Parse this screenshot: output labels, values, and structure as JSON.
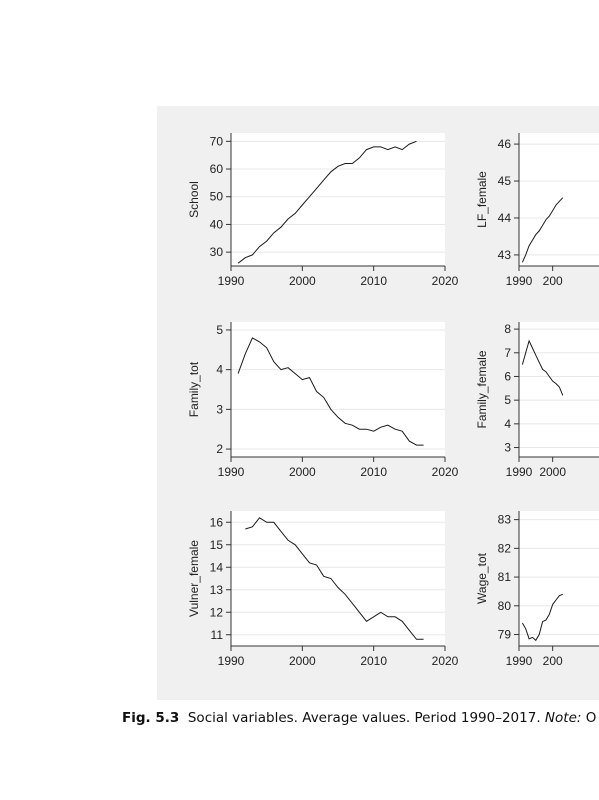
{
  "caption": {
    "figure_number": "Fig. 5.3",
    "text": "Social variables. Average values. Period 1990–2017.",
    "note_label": "Note:",
    "note_text": "O"
  },
  "chart_data": [
    {
      "type": "line",
      "ylabel": "School",
      "xticks": [
        "1990",
        "2000",
        "2010",
        "2020"
      ],
      "yticks": [
        "30",
        "40",
        "50",
        "60",
        "70"
      ],
      "xlim": [
        1990,
        2020
      ],
      "ylim": [
        25,
        73
      ],
      "grid": true,
      "x": [
        1991,
        1992,
        1993,
        1994,
        1995,
        1996,
        1997,
        1998,
        1999,
        2000,
        2001,
        2002,
        2003,
        2004,
        2005,
        2006,
        2007,
        2008,
        2009,
        2010,
        2011,
        2012,
        2013,
        2014,
        2015,
        2016
      ],
      "values": [
        26,
        28,
        29,
        32,
        34,
        37,
        39,
        42,
        44,
        47,
        50,
        53,
        56,
        59,
        61,
        62,
        62,
        64,
        67,
        68,
        68,
        67,
        68,
        67,
        69,
        70
      ]
    },
    {
      "type": "line",
      "ylabel": "LF_female",
      "xticks": [
        "1990",
        "200"
      ],
      "yticks": [
        "43",
        "44",
        "45",
        "46"
      ],
      "xlim": [
        1990,
        2020
      ],
      "ylim": [
        42.7,
        46.3
      ],
      "grid": true,
      "x": [
        1991,
        1992,
        1993,
        1994,
        1995,
        1996,
        1997,
        1998,
        1999,
        2000,
        2001,
        2002,
        2003
      ],
      "values": [
        42.8,
        43.0,
        43.25,
        43.4,
        43.55,
        43.65,
        43.8,
        43.95,
        44.05,
        44.2,
        44.35,
        44.45,
        44.55
      ]
    },
    {
      "type": "line",
      "ylabel": "Family_tot",
      "xticks": [
        "1990",
        "2000",
        "2010",
        "2020"
      ],
      "yticks": [
        "2",
        "3",
        "4",
        "5"
      ],
      "xlim": [
        1990,
        2020
      ],
      "ylim": [
        1.8,
        5.2
      ],
      "grid": true,
      "x": [
        1991,
        1992,
        1993,
        1994,
        1995,
        1996,
        1997,
        1998,
        1999,
        2000,
        2001,
        2002,
        2003,
        2004,
        2005,
        2006,
        2007,
        2008,
        2009,
        2010,
        2011,
        2012,
        2013,
        2014,
        2015,
        2016,
        2017
      ],
      "values": [
        3.9,
        4.4,
        4.8,
        4.7,
        4.55,
        4.2,
        4.0,
        4.05,
        3.9,
        3.75,
        3.8,
        3.45,
        3.3,
        3.0,
        2.8,
        2.65,
        2.6,
        2.5,
        2.5,
        2.45,
        2.55,
        2.6,
        2.5,
        2.45,
        2.2,
        2.1,
        2.1
      ]
    },
    {
      "type": "line",
      "ylabel": "Family_female",
      "xticks": [
        "1990",
        "2000"
      ],
      "yticks": [
        "3",
        "4",
        "5",
        "6",
        "7",
        "8"
      ],
      "xlim": [
        1990,
        2020
      ],
      "ylim": [
        2.6,
        8.3
      ],
      "grid": true,
      "x": [
        1991,
        1992,
        1993,
        1994,
        1995,
        1996,
        1997,
        1998,
        1999,
        2000,
        2001,
        2002,
        2003
      ],
      "values": [
        6.5,
        7.0,
        7.5,
        7.2,
        6.9,
        6.6,
        6.3,
        6.2,
        6.0,
        5.8,
        5.7,
        5.55,
        5.2
      ]
    },
    {
      "type": "line",
      "ylabel": "Vulner_female",
      "xticks": [
        "1990",
        "2000",
        "2010",
        "2020"
      ],
      "yticks": [
        "11",
        "12",
        "13",
        "14",
        "15",
        "16"
      ],
      "xlim": [
        1990,
        2020
      ],
      "ylim": [
        10.5,
        16.5
      ],
      "grid": true,
      "x": [
        1992,
        1993,
        1994,
        1995,
        1996,
        1997,
        1998,
        1999,
        2000,
        2001,
        2002,
        2003,
        2004,
        2005,
        2006,
        2007,
        2008,
        2009,
        2010,
        2011,
        2012,
        2013,
        2014,
        2015,
        2016,
        2017
      ],
      "values": [
        15.7,
        15.8,
        16.2,
        16.0,
        16.0,
        15.6,
        15.2,
        15.0,
        14.6,
        14.2,
        14.1,
        13.6,
        13.5,
        13.1,
        12.8,
        12.4,
        12.0,
        11.6,
        11.8,
        12.0,
        11.8,
        11.8,
        11.6,
        11.2,
        10.8,
        10.8
      ]
    },
    {
      "type": "line",
      "ylabel": "Wage_tot",
      "xticks": [
        "1990",
        "200"
      ],
      "yticks": [
        "79",
        "80",
        "81",
        "82",
        "83"
      ],
      "xlim": [
        1990,
        2020
      ],
      "ylim": [
        78.6,
        83.3
      ],
      "grid": true,
      "x": [
        1991,
        1992,
        1993,
        1994,
        1995,
        1996,
        1997,
        1998,
        1999,
        2000,
        2001,
        2002,
        2003
      ],
      "values": [
        79.4,
        79.2,
        78.85,
        78.9,
        78.8,
        79.0,
        79.45,
        79.5,
        79.7,
        80.05,
        80.2,
        80.35,
        80.4
      ]
    }
  ]
}
